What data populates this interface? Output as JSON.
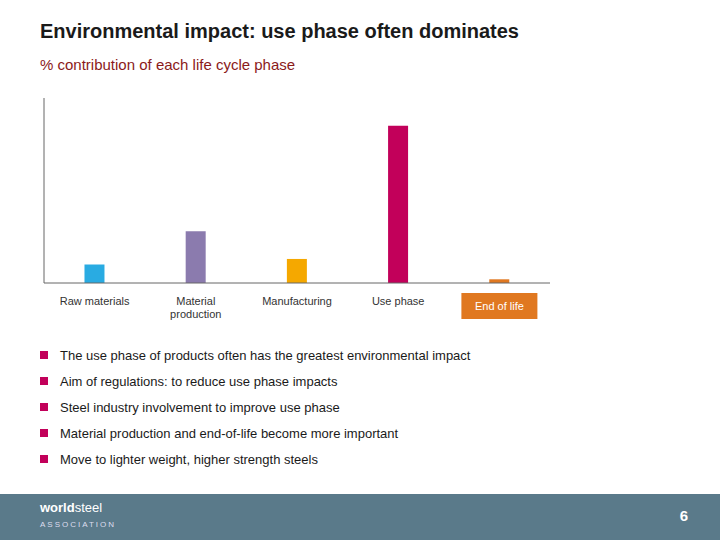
{
  "chart_data": {
    "type": "bar",
    "title": "Environmental impact: use phase often dominates",
    "subtitle": "% contribution of each life cycle phase",
    "categories": [
      "Raw materials",
      "Material\nproduction",
      "Manufacturing",
      "Use phase",
      "End of life"
    ],
    "values": [
      10,
      28,
      13,
      85,
      2
    ],
    "colors": [
      "#29ABE2",
      "#8B7BAE",
      "#F5A800",
      "#C2005A",
      "#E07820"
    ],
    "ylim": [
      0,
      100
    ],
    "yticks": [],
    "tick_labels": "x",
    "grid": false,
    "bullets": [
      "The use phase of products often has the greatest environmental impact",
      "Aim of regulations: to reduce use phase impacts",
      "Steel industry involvement to improve use phase",
      "Material production and end-of-life become more important",
      "Move to lighter weight, higher strength steels"
    ],
    "footer": {
      "brand_bold": "world",
      "brand": "steel",
      "sub": "ASSOCIATION",
      "page": "6"
    }
  }
}
